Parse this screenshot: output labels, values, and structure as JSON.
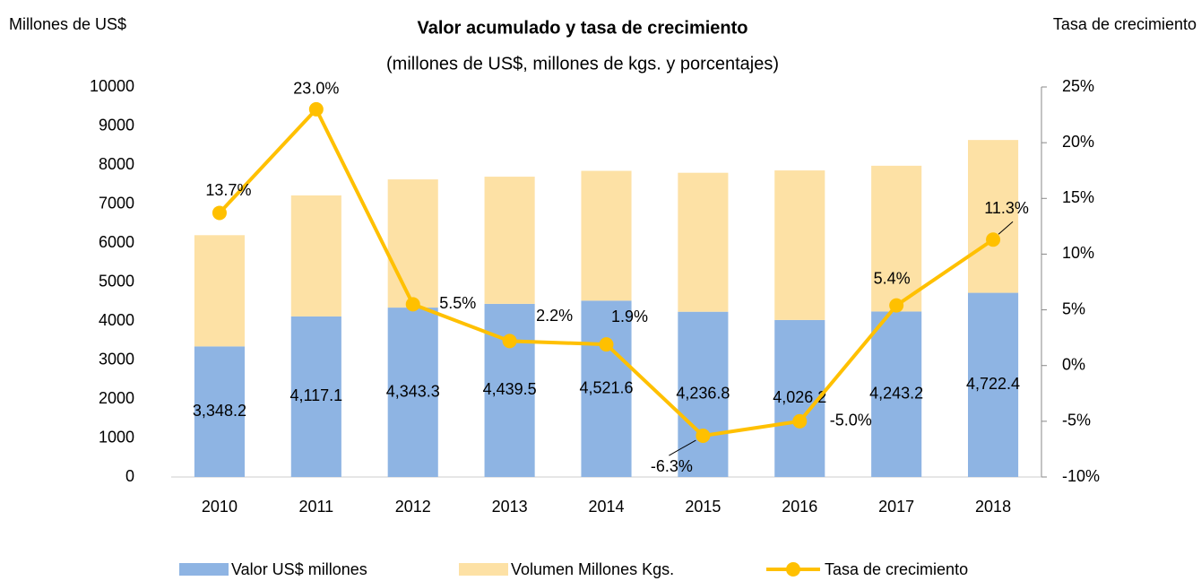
{
  "chart_data": {
    "type": "bar-line",
    "title": "Valor acumulado y tasa de crecimiento",
    "subtitle": "(millones de US$, millones de kgs. y porcentajes)",
    "y_axis_label": "Millones de US$",
    "y2_axis_label": "Tasa de crecimiento",
    "categories": [
      "2010",
      "2011",
      "2012",
      "2013",
      "2014",
      "2015",
      "2016",
      "2017",
      "2018"
    ],
    "series": [
      {
        "name": "Valor US$ millones",
        "type": "bar",
        "color": "#8eb4e3",
        "values": [
          3348.2,
          4117.1,
          4343.3,
          4439.5,
          4521.6,
          4236.8,
          4026.2,
          4243.2,
          4722.4
        ],
        "value_labels": [
          "3,348.2",
          "4,117.1",
          "4,343.3",
          "4,439.5",
          "4,521.6",
          "4,236.8",
          "4,026.2",
          "4,243.2",
          "4,722.4"
        ]
      },
      {
        "name": "Volumen Millones Kgs.",
        "type": "bar",
        "color": "#fde1a5",
        "values": [
          2852,
          3103,
          3287,
          3260,
          3328,
          3563,
          3834,
          3737,
          3918
        ]
      },
      {
        "name": "Tasa de crecimiento",
        "type": "line",
        "axis": "y2",
        "color": "#ffc000",
        "values": [
          13.7,
          23.0,
          5.5,
          2.2,
          1.9,
          -6.3,
          -5.0,
          5.4,
          11.3
        ],
        "value_labels": [
          "13.7%",
          "23.0%",
          "5.5%",
          "2.2%",
          "1.9%",
          "-6.3%",
          "-5.0%",
          "5.4%",
          "11.3%"
        ]
      }
    ],
    "ylim": [
      0,
      10000
    ],
    "yticks": [
      0,
      1000,
      2000,
      3000,
      4000,
      5000,
      6000,
      7000,
      8000,
      9000,
      10000
    ],
    "y2lim": [
      -10,
      25
    ],
    "y2ticks": [
      {
        "value": -10,
        "label": "-10%"
      },
      {
        "value": -5,
        "label": "-5%"
      },
      {
        "value": 0,
        "label": "0%"
      },
      {
        "value": 5,
        "label": "5%"
      },
      {
        "value": 10,
        "label": "10%"
      },
      {
        "value": 15,
        "label": "15%"
      },
      {
        "value": 20,
        "label": "20%"
      },
      {
        "value": 25,
        "label": "25%"
      }
    ],
    "stacked": true,
    "legend": "bottom"
  }
}
